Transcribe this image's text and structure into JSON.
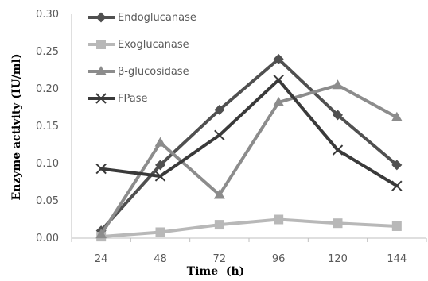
{
  "chart_data": {
    "type": "line",
    "title": "",
    "xlabel": "Time  (h)",
    "ylabel": "Enzyme activity (IU/ml)",
    "categories": [
      "24",
      "48",
      "72",
      "96",
      "120",
      "144"
    ],
    "ylim": [
      0,
      0.3
    ],
    "yticks": [
      "0.00",
      "0.05",
      "0.10",
      "0.15",
      "0.20",
      "0.25",
      "0.30"
    ],
    "grid": false,
    "legend_position": "top-left",
    "series": [
      {
        "name": "Endoglucanase",
        "values": [
          0.01,
          0.098,
          0.172,
          0.24,
          0.165,
          0.098
        ],
        "color": "#505050",
        "marker": "diamond"
      },
      {
        "name": "Exoglucanase",
        "values": [
          0.002,
          0.008,
          0.018,
          0.025,
          0.02,
          0.016
        ],
        "color": "#b8b8b8",
        "marker": "square"
      },
      {
        "name": "β-glucosidase",
        "values": [
          0.005,
          0.128,
          0.058,
          0.182,
          0.205,
          0.162
        ],
        "color": "#8c8c8c",
        "marker": "triangle"
      },
      {
        "name": "FPase",
        "values": [
          0.093,
          0.083,
          0.138,
          0.212,
          0.118,
          0.07
        ],
        "color": "#3a3a3a",
        "marker": "x"
      }
    ]
  }
}
